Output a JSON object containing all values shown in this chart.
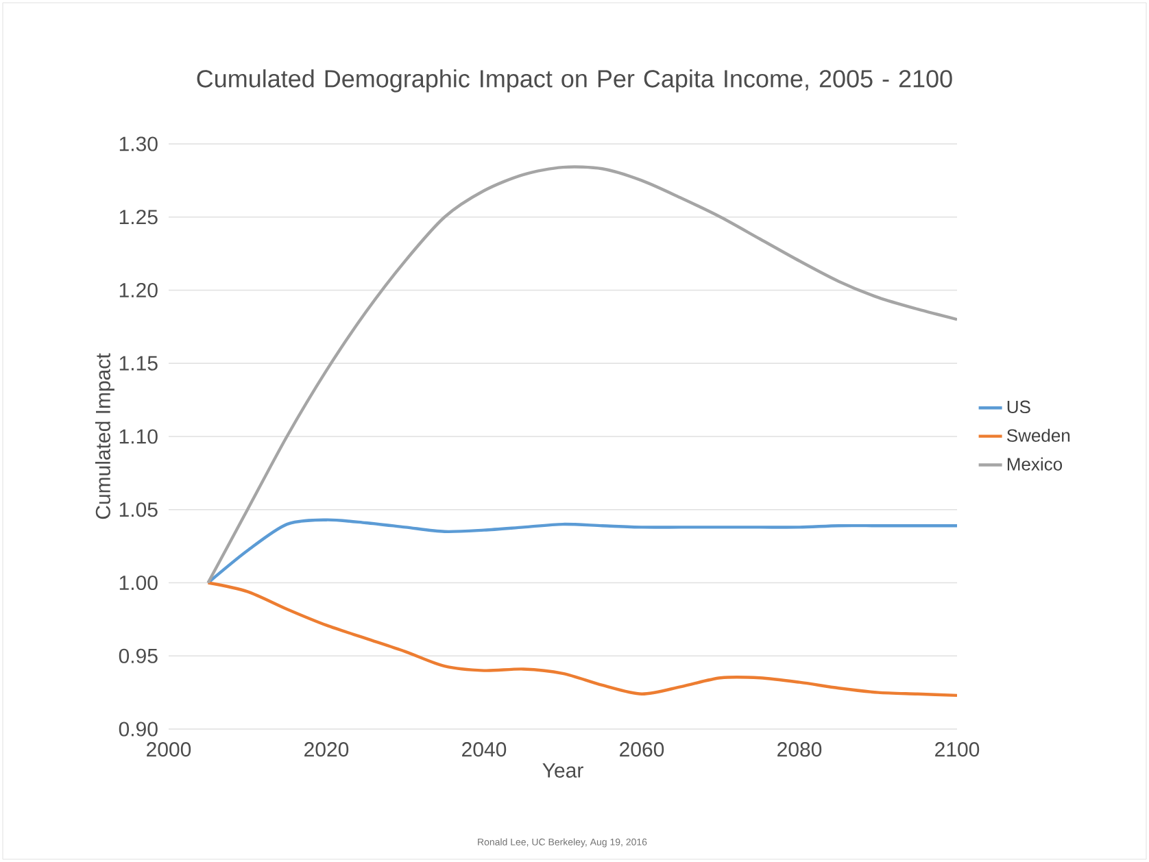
{
  "chart_data": {
    "type": "line",
    "title": "Cumulated Demographic Impact on Per Capita Income, 2005 - 2100",
    "xlabel": "Year",
    "ylabel": "Cumulated Impact",
    "annotations": [
      "Ronald Lee, UC Berkeley, Aug 19, 2016"
    ],
    "x": [
      2005,
      2010,
      2015,
      2020,
      2025,
      2030,
      2035,
      2040,
      2045,
      2050,
      2055,
      2060,
      2065,
      2070,
      2075,
      2080,
      2085,
      2090,
      2095,
      2100
    ],
    "series": [
      {
        "name": "US",
        "color": "#5b9bd5",
        "values": [
          1.0,
          1.022,
          1.04,
          1.043,
          1.041,
          1.038,
          1.035,
          1.036,
          1.038,
          1.04,
          1.039,
          1.038,
          1.038,
          1.038,
          1.038,
          1.038,
          1.039,
          1.039,
          1.039,
          1.039
        ]
      },
      {
        "name": "Sweden",
        "color": "#ed7d31",
        "values": [
          1.0,
          0.994,
          0.982,
          0.971,
          0.962,
          0.953,
          0.943,
          0.94,
          0.941,
          0.938,
          0.93,
          0.924,
          0.929,
          0.935,
          0.935,
          0.932,
          0.928,
          0.925,
          0.924,
          0.923
        ]
      },
      {
        "name": "Mexico",
        "color": "#a5a5a5",
        "values": [
          1.0,
          1.05,
          1.1,
          1.145,
          1.185,
          1.22,
          1.25,
          1.268,
          1.279,
          1.284,
          1.283,
          1.275,
          1.263,
          1.25,
          1.235,
          1.22,
          1.206,
          1.195,
          1.187,
          1.18
        ]
      }
    ],
    "xlim": [
      2000,
      2100
    ],
    "xticks": [
      2000,
      2020,
      2040,
      2060,
      2080,
      2100
    ],
    "ylim": [
      0.9,
      1.3
    ],
    "yticks": [
      {
        "value": 0.9,
        "label": "0.90"
      },
      {
        "value": 0.95,
        "label": "0.95"
      },
      {
        "value": 1.0,
        "label": "1.00"
      },
      {
        "value": 1.05,
        "label": "1.05"
      },
      {
        "value": 1.1,
        "label": "1.10"
      },
      {
        "value": 1.15,
        "label": "1.15"
      },
      {
        "value": 1.2,
        "label": "1.20"
      },
      {
        "value": 1.25,
        "label": "1.25"
      },
      {
        "value": 1.3,
        "label": "1.30"
      }
    ],
    "grid": "y",
    "legend": "right",
    "marker": "none",
    "line_style": "solid"
  }
}
